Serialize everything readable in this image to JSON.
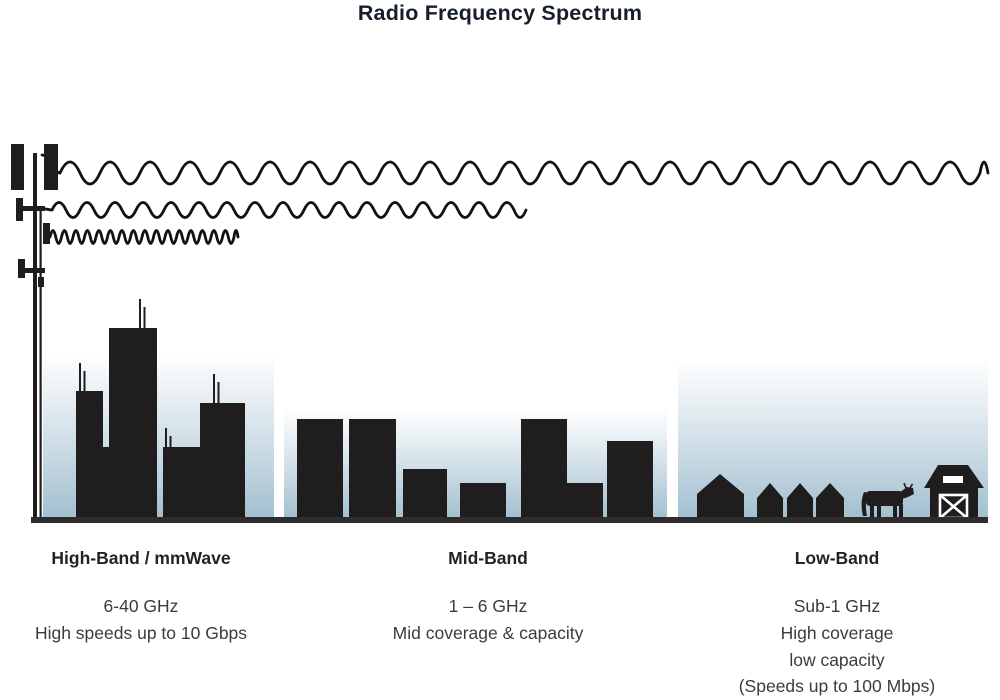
{
  "title": "Radio Frequency Spectrum",
  "bands": [
    {
      "name": "High-Band / mmWave",
      "details": [
        "6-40 GHz",
        "High speeds up to 10 Gbps"
      ],
      "icon": "city-skyline-with-antennas"
    },
    {
      "name": "Mid-Band",
      "details": [
        "1 – 6 GHz",
        "Mid coverage & capacity"
      ],
      "icon": "town-skyline"
    },
    {
      "name": "Low-Band",
      "details": [
        "Sub-1 GHz",
        "High coverage",
        "low capacity",
        "(Speeds up to 100 Mbps)"
      ],
      "icon": "rural-houses-cow-barn"
    }
  ],
  "icons": [
    "cell-tower-icon",
    "long-wave-icon",
    "medium-wave-icon",
    "short-wave-icon",
    "city-skyline-icon",
    "town-skyline-icon",
    "house-icon",
    "cow-icon",
    "barn-icon"
  ],
  "colors": {
    "silhouette": "#201d1e",
    "sky_top": "#ffffff",
    "sky_bottom": "#a3c0d0",
    "ground": "#2e2d2d",
    "title_text": "#161e29",
    "heading_text": "#232323",
    "body_text": "#3c3c3c",
    "wave_stroke": "#121212"
  }
}
